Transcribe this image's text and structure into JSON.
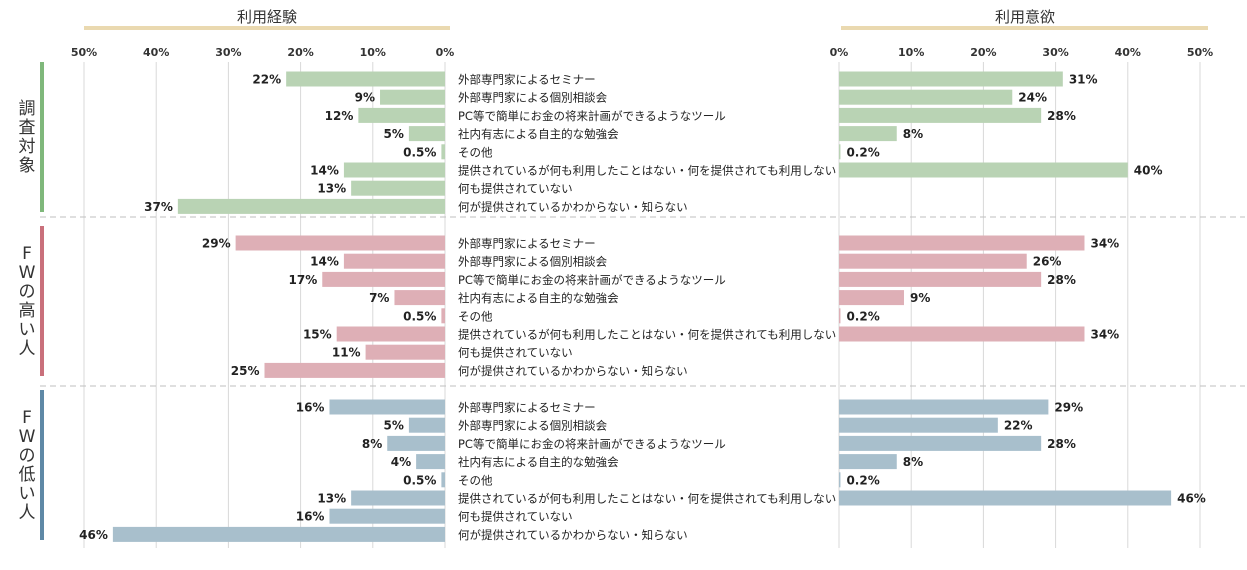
{
  "chart_data": {
    "type": "bar",
    "left_panel": {
      "title": "利用経験",
      "ticks": [
        "50%",
        "40%",
        "30%",
        "20%",
        "10%",
        "0%"
      ]
    },
    "right_panel": {
      "title": "利用意欲",
      "ticks": [
        "0%",
        "10%",
        "20%",
        "30%",
        "40%",
        "50%"
      ]
    },
    "xlim": [
      0,
      50
    ],
    "colors": {
      "調査対象": "#b9d3b4",
      "FWの高い人": "#deafb6",
      "FWの低い人": "#a8bfcc",
      "accent_line": "#ead9b0"
    },
    "bar_colors": [
      "#b9d3b4",
      "#deafb6",
      "#a8bfcc"
    ],
    "group_bar_colors": [
      "#7fb87b",
      "#c9707b",
      "#5f89a6"
    ],
    "categories": [
      "外部専門家によるセミナー",
      "外部専門家による個別相談会",
      "PC等で簡単にお金の将来計画ができるようなツール",
      "社内有志による自主的な勉強会",
      "その他",
      "提供されているが何も利用したことはない・何を提供されても利用しない",
      "何も提供されていない",
      "何が提供されているかわからない・知らない"
    ],
    "groups": [
      {
        "label": "調査対象",
        "experience": [
          22,
          9,
          12,
          5,
          0.5,
          14,
          13,
          37
        ],
        "experience_labels": [
          "22%",
          "9%",
          "12%",
          "5%",
          "0.5%",
          "14%",
          "13%",
          "37%"
        ],
        "intention": [
          31,
          24,
          28,
          8,
          0.2,
          40,
          null,
          null
        ],
        "intention_labels": [
          "31%",
          "24%",
          "28%",
          "8%",
          "0.2%",
          "40%",
          "",
          ""
        ]
      },
      {
        "label": "FWの高い人",
        "experience": [
          29,
          14,
          17,
          7,
          0.5,
          15,
          11,
          25
        ],
        "experience_labels": [
          "29%",
          "14%",
          "17%",
          "7%",
          "0.5%",
          "15%",
          "11%",
          "25%"
        ],
        "intention": [
          34,
          26,
          28,
          9,
          0.2,
          34,
          null,
          null
        ],
        "intention_labels": [
          "34%",
          "26%",
          "28%",
          "9%",
          "0.2%",
          "34%",
          "",
          ""
        ]
      },
      {
        "label": "FWの低い人",
        "experience": [
          16,
          5,
          8,
          4,
          0.5,
          13,
          16,
          46
        ],
        "experience_labels": [
          "16%",
          "5%",
          "8%",
          "4%",
          "0.5%",
          "13%",
          "16%",
          "46%"
        ],
        "intention": [
          29,
          22,
          28,
          8,
          0.2,
          46,
          null,
          null
        ],
        "intention_labels": [
          "29%",
          "22%",
          "28%",
          "8%",
          "0.2%",
          "46%",
          "",
          ""
        ]
      }
    ]
  }
}
